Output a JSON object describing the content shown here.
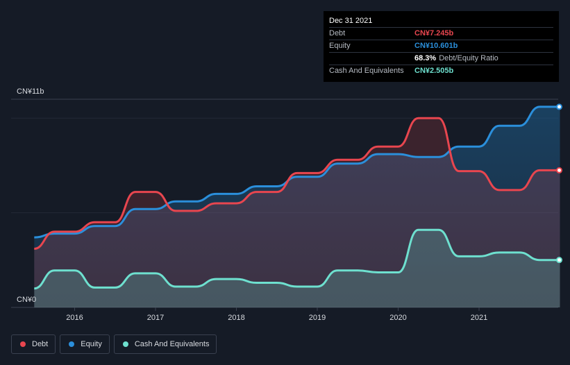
{
  "chart_data": {
    "type": "area",
    "xlabel": "",
    "ylabel": "",
    "ylim": [
      0,
      11
    ],
    "y_axis_labels": {
      "top": "CN¥11b",
      "bottom": "CN¥0"
    },
    "x_ticks": [
      2016,
      2017,
      2018,
      2019,
      2020,
      2021
    ],
    "xlim": [
      2015.5,
      2022.0
    ],
    "series": [
      {
        "name": "Debt",
        "color": "#e8464f",
        "points": [
          [
            2015.5,
            3.1
          ],
          [
            2015.75,
            4.0
          ],
          [
            2016.0,
            4.0
          ],
          [
            2016.25,
            4.5
          ],
          [
            2016.5,
            4.5
          ],
          [
            2016.75,
            6.1
          ],
          [
            2017.0,
            6.1
          ],
          [
            2017.25,
            5.1
          ],
          [
            2017.5,
            5.1
          ],
          [
            2017.75,
            5.5
          ],
          [
            2018.0,
            5.5
          ],
          [
            2018.25,
            6.1
          ],
          [
            2018.5,
            6.1
          ],
          [
            2018.75,
            7.1
          ],
          [
            2019.0,
            7.1
          ],
          [
            2019.25,
            7.8
          ],
          [
            2019.5,
            7.8
          ],
          [
            2019.75,
            8.5
          ],
          [
            2020.0,
            8.5
          ],
          [
            2020.25,
            10.0
          ],
          [
            2020.5,
            10.0
          ],
          [
            2020.75,
            7.2
          ],
          [
            2021.0,
            7.2
          ],
          [
            2021.25,
            6.2
          ],
          [
            2021.5,
            6.2
          ],
          [
            2021.75,
            7.245
          ],
          [
            2022.0,
            7.245
          ]
        ]
      },
      {
        "name": "Equity",
        "color": "#2b8fdb",
        "points": [
          [
            2015.5,
            3.7
          ],
          [
            2015.75,
            3.9
          ],
          [
            2016.0,
            3.9
          ],
          [
            2016.25,
            4.3
          ],
          [
            2016.5,
            4.3
          ],
          [
            2016.75,
            5.2
          ],
          [
            2017.0,
            5.2
          ],
          [
            2017.25,
            5.6
          ],
          [
            2017.5,
            5.6
          ],
          [
            2017.75,
            6.0
          ],
          [
            2018.0,
            6.0
          ],
          [
            2018.25,
            6.4
          ],
          [
            2018.5,
            6.4
          ],
          [
            2018.75,
            6.9
          ],
          [
            2019.0,
            6.9
          ],
          [
            2019.25,
            7.6
          ],
          [
            2019.5,
            7.6
          ],
          [
            2019.75,
            8.1
          ],
          [
            2020.0,
            8.1
          ],
          [
            2020.25,
            7.95
          ],
          [
            2020.5,
            7.95
          ],
          [
            2020.75,
            8.5
          ],
          [
            2021.0,
            8.5
          ],
          [
            2021.25,
            9.6
          ],
          [
            2021.5,
            9.6
          ],
          [
            2021.75,
            10.601
          ],
          [
            2022.0,
            10.601
          ]
        ]
      },
      {
        "name": "Cash And Equivalents",
        "color": "#6ee0cf",
        "points": [
          [
            2015.5,
            1.0
          ],
          [
            2015.75,
            1.95
          ],
          [
            2016.0,
            1.95
          ],
          [
            2016.25,
            1.05
          ],
          [
            2016.5,
            1.05
          ],
          [
            2016.75,
            1.8
          ],
          [
            2017.0,
            1.8
          ],
          [
            2017.25,
            1.1
          ],
          [
            2017.5,
            1.1
          ],
          [
            2017.75,
            1.5
          ],
          [
            2018.0,
            1.5
          ],
          [
            2018.25,
            1.3
          ],
          [
            2018.5,
            1.3
          ],
          [
            2018.75,
            1.1
          ],
          [
            2019.0,
            1.1
          ],
          [
            2019.25,
            1.95
          ],
          [
            2019.5,
            1.95
          ],
          [
            2019.75,
            1.85
          ],
          [
            2020.0,
            1.85
          ],
          [
            2020.25,
            4.1
          ],
          [
            2020.5,
            4.1
          ],
          [
            2020.75,
            2.7
          ],
          [
            2021.0,
            2.7
          ],
          [
            2021.25,
            2.9
          ],
          [
            2021.5,
            2.9
          ],
          [
            2021.75,
            2.505
          ],
          [
            2022.0,
            2.505
          ]
        ]
      }
    ]
  },
  "tooltip": {
    "date": "Dec 31 2021",
    "rows": [
      {
        "label": "Debt",
        "value": "CN¥7.245b",
        "color": "#e8464f"
      },
      {
        "label": "Equity",
        "value": "CN¥10.601b",
        "color": "#2b8fdb"
      },
      {
        "label": "",
        "value": "68.3%",
        "sub": "Debt/Equity Ratio",
        "color": "#ffffff"
      },
      {
        "label": "Cash And Equivalents",
        "value": "CN¥2.505b",
        "color": "#6ee0cf"
      }
    ]
  },
  "legend": [
    {
      "label": "Debt",
      "color": "#e8464f"
    },
    {
      "label": "Equity",
      "color": "#2b8fdb"
    },
    {
      "label": "Cash And Equivalents",
      "color": "#6ee0cf"
    }
  ]
}
